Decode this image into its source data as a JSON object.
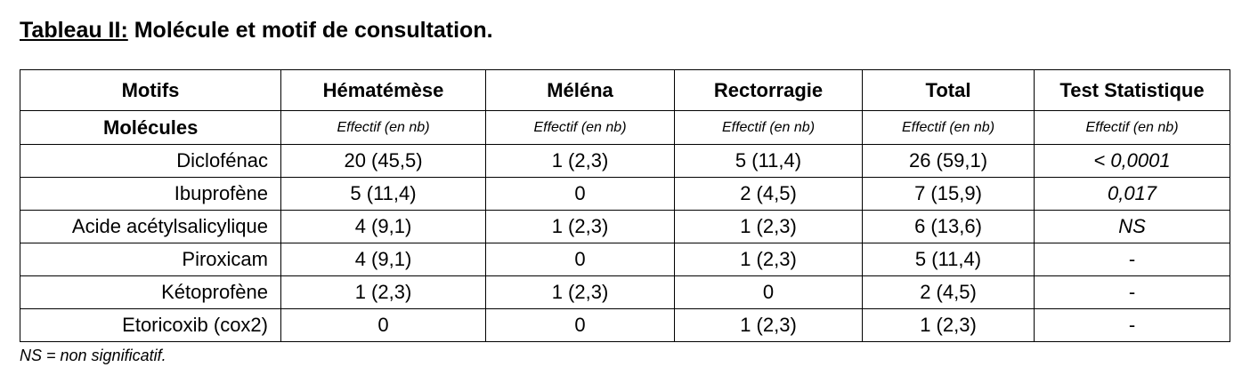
{
  "caption": {
    "lead": "Tableau II:",
    "title": "Molécule et motif de consultation."
  },
  "header": {
    "corner_top": "Motifs",
    "corner_bottom": "Molécules",
    "columns": [
      "Hématémèse",
      "Méléna",
      "Rectorragie",
      "Total",
      "Test Statistique"
    ],
    "sublabel": "Effectif (en nb)"
  },
  "rows": [
    {
      "label": "Diclofénac",
      "cells": [
        "20 (45,5)",
        "1 (2,3)",
        "5 (11,4)",
        "26 (59,1)",
        "< 0,0001"
      ]
    },
    {
      "label": "Ibuprofène",
      "cells": [
        "5 (11,4)",
        "0",
        "2 (4,5)",
        "7 (15,9)",
        "0,017"
      ]
    },
    {
      "label": "Acide acétylsalicylique",
      "cells": [
        "4 (9,1)",
        "1 (2,3)",
        "1 (2,3)",
        "6 (13,6)",
        "NS"
      ]
    },
    {
      "label": "Piroxicam",
      "cells": [
        "4 (9,1)",
        "0",
        "1 (2,3)",
        "5 (11,4)",
        "-"
      ]
    },
    {
      "label": "Kétoprofène",
      "cells": [
        "1 (2,3)",
        "1 (2,3)",
        "0",
        "2 (4,5)",
        "-"
      ]
    },
    {
      "label": "Etoricoxib (cox2)",
      "cells": [
        "0",
        "0",
        "1 (2,3)",
        "1 (2,3)",
        "-"
      ]
    }
  ],
  "footnote": "NS = non significatif."
}
